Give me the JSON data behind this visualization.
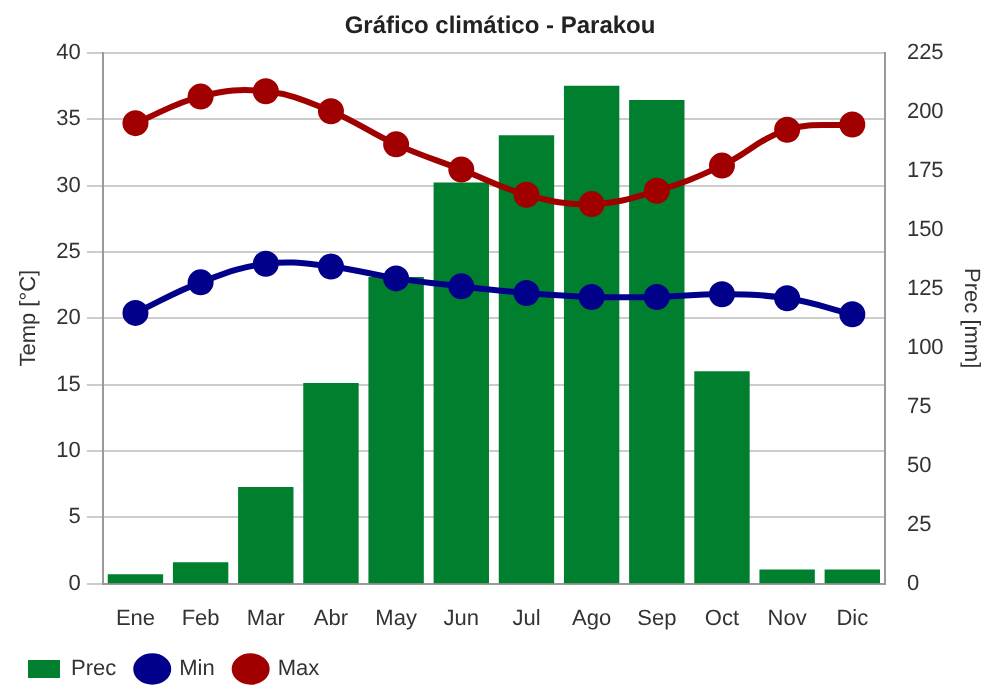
{
  "chart_data": {
    "type": "bar",
    "title": "Gráfico climático - Parakou",
    "ylabel": "Temp [°C]",
    "y2label": "Prec [mm]",
    "categories": [
      "Ene",
      "Feb",
      "Mar",
      "Abr",
      "May",
      "Jun",
      "Jul",
      "Ago",
      "Sep",
      "Oct",
      "Nov",
      "Dic"
    ],
    "series": [
      {
        "name": "Prec",
        "axis": "y2",
        "color": "#007f2e",
        "values": [
          4,
          9,
          41,
          85,
          130,
          170,
          190,
          211,
          205,
          90,
          6,
          6
        ]
      },
      {
        "name": "Min",
        "type": "line",
        "axis": "y",
        "color": "#00008b",
        "values": [
          20.4,
          22.7,
          24.1,
          23.9,
          23.0,
          22.4,
          21.9,
          21.6,
          21.6,
          21.8,
          21.5,
          20.3
        ]
      },
      {
        "name": "Max",
        "type": "line",
        "axis": "y",
        "color": "#a00000",
        "values": [
          34.7,
          36.7,
          37.1,
          35.6,
          33.1,
          31.2,
          29.3,
          28.6,
          29.6,
          31.5,
          34.2,
          34.6
        ]
      }
    ],
    "ylim": [
      0,
      40
    ],
    "yticks": [
      0,
      5,
      10,
      15,
      20,
      25,
      30,
      35,
      40
    ],
    "y2lim": [
      0,
      225
    ],
    "y2ticks": [
      0,
      25,
      50,
      75,
      100,
      125,
      150,
      175,
      200,
      225
    ],
    "grid": "y",
    "legend": "bottom",
    "marker": "circle",
    "line_style": "solid"
  }
}
